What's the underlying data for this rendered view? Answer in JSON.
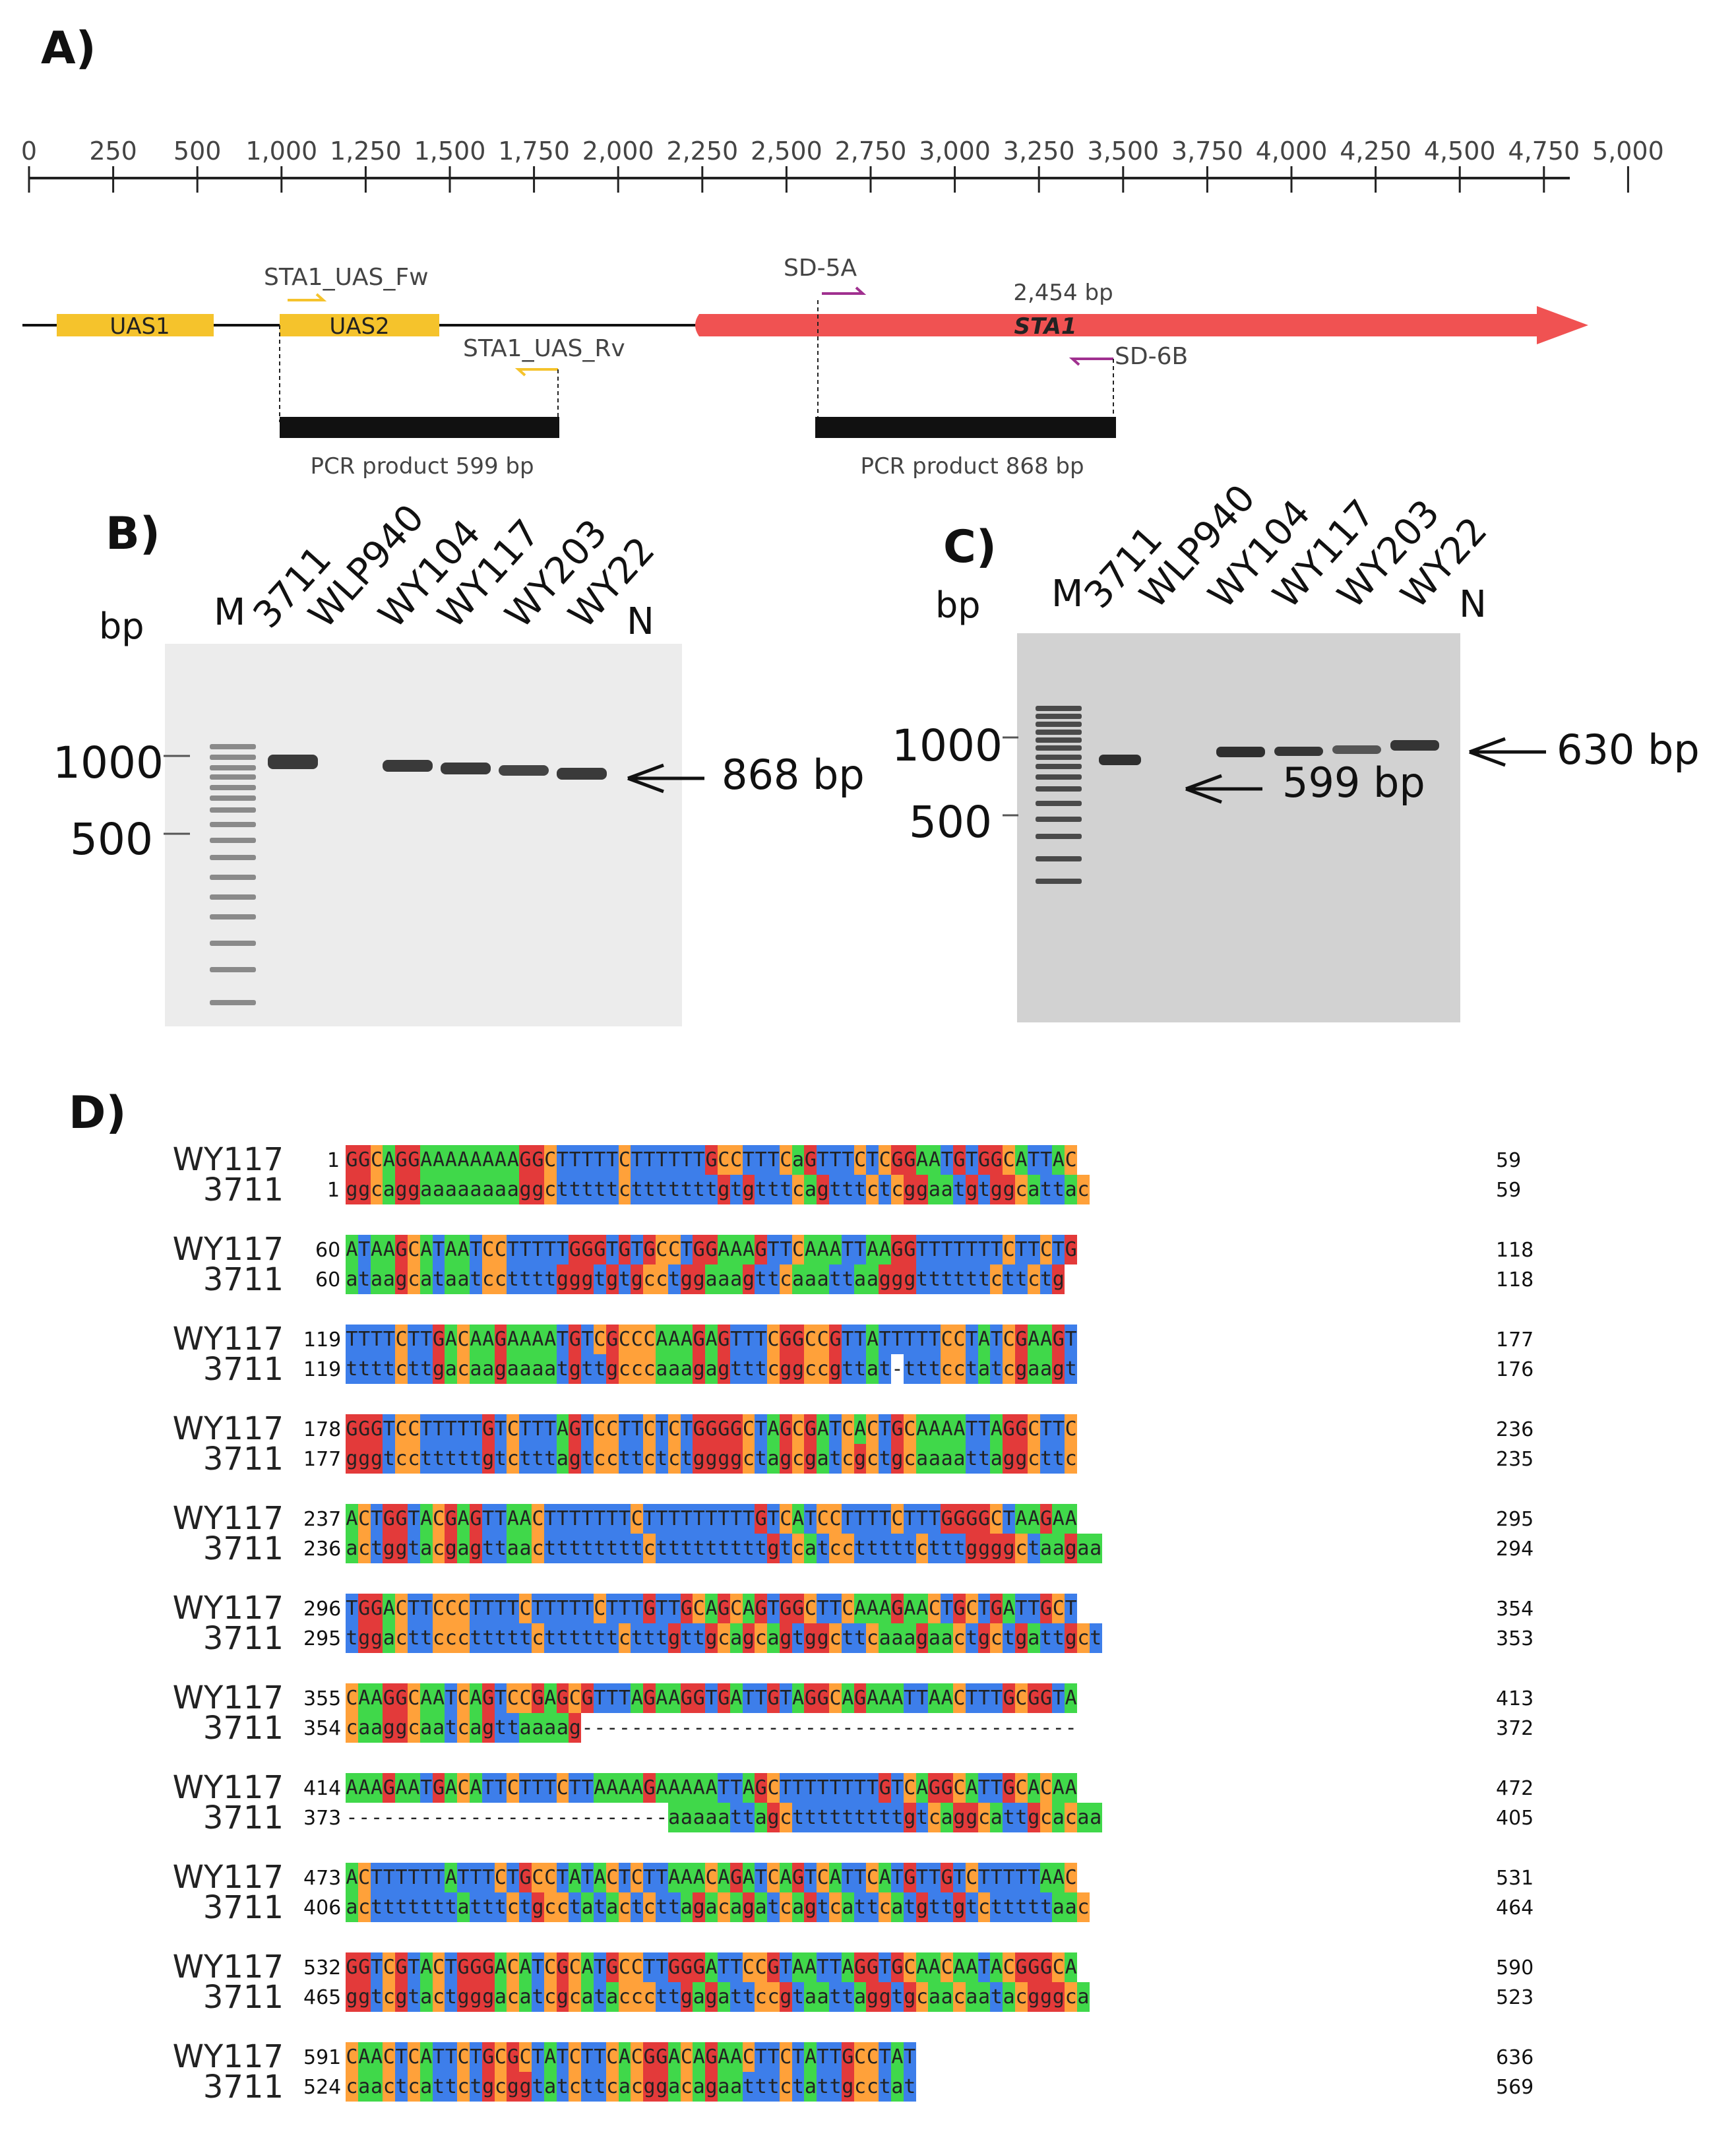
{
  "panels": {
    "a": "A)",
    "b": "B)",
    "c": "C)",
    "d": "D)"
  },
  "ruler_ticks": [
    "0",
    "250",
    "500",
    "1,000",
    "1,250",
    "1,500",
    "1,750",
    "2,000",
    "2,250",
    "2,500",
    "2,750",
    "3,000",
    "3,250",
    "3,500",
    "3,750",
    "4,000",
    "4,250",
    "4,500",
    "4,750",
    "5,000"
  ],
  "map": {
    "uas1": "UAS1",
    "uas2": "UAS2",
    "sta1": "STA1",
    "sta1_size": "2,454 bp",
    "primer_fw": "STA1_UAS_Fw",
    "primer_rv": "STA1_UAS_Rv",
    "primer_5a": "SD-5A",
    "primer_6b": "SD-6B",
    "pcr_left": "PCR product 599 bp",
    "pcr_right": "PCR product 868 bp",
    "colors": {
      "uas": "#f5c32c",
      "sta1": "#f05252",
      "primer_yellow": "#f5c32c",
      "primer_purple": "#a0308f"
    }
  },
  "gel_b": {
    "lanes": [
      "M",
      "3711",
      "WLP940",
      "WY104",
      "WY117",
      "WY203",
      "WY22",
      "N"
    ],
    "bp": "bp",
    "mark_high": "1000",
    "mark_low": "500",
    "arrow_label": "868 bp"
  },
  "gel_c": {
    "lanes": [
      "M",
      "3711",
      "WLP940",
      "WY104",
      "WY117",
      "WY203",
      "WY22",
      "N"
    ],
    "bp": "bp",
    "mark_high": "1000",
    "mark_low": "500",
    "arrow_label_1": "599 bp",
    "arrow_label_2": "630 bp"
  },
  "alignment": {
    "name_a": "WY117",
    "name_b": "3711",
    "rows": [
      {
        "a_start": "1",
        "a_end": "59",
        "b_start": "1",
        "b_end": "59",
        "a": "GGCAGGAAAAAAAAGGCTTTTTCTTTTTTGCCTTTCaGTTTCTCGGAATGTGGCATTAC",
        "b": "ggcaggaaaaaaaaggctttttctttttttgtgtttcagtttctcggaatgtggcattac"
      },
      {
        "a_start": "60",
        "a_end": "118",
        "b_start": "60",
        "b_end": "118",
        "a": "ATAAGCATAATCCTTTTTGGGTGTGCCTGGAAAGTTCAAATTAAGGTTTTTTTCTTCTG",
        "b": "ataagcataatccttttgggtgtgcctggaaagttcaaattaagggttttttcttctg"
      },
      {
        "a_start": "119",
        "a_end": "177",
        "b_start": "119",
        "b_end": "176",
        "a": "TTTTCTTGACAAGAAAATGTCGCCCAAAGAGTTTCGGCCGTTATTTTTCCTATCGAAGT",
        "b": "ttttcttgacaagaaaatgttgcccaaagagtttcggccgttat-tttcctatcgaagt"
      },
      {
        "a_start": "178",
        "a_end": "236",
        "b_start": "177",
        "b_end": "235",
        "a": "GGGTCCTTTTTGTCTTTAGTCCTTCTCTGGGGCTAGCGATCACTGCAAAATTAGGCTTC",
        "b": "gggtcctttttgtctttagtccttctctggggctagcgatcgctgcaaaattaggcttc"
      },
      {
        "a_start": "237",
        "a_end": "295",
        "b_start": "236",
        "b_end": "294",
        "a": "ACTGGTACGAGTTAACTTTTTTTCTTTTTTTTTGTCATCCTTTTCTTTGGGGCTAAGAA",
        "b": "actggtacgagttaacttttttttctttttttttgtcatcctttttctttggggctaagaa"
      },
      {
        "a_start": "296",
        "a_end": "354",
        "b_start": "295",
        "b_end": "353",
        "a": "TGGACTTCCCTTTTCTTTTTCTTTGTTGCAGCAGTGGCTTCAAAGAACTGCTGATTGCT",
        "b": "tggacttccctttttcttttttctttgttgcagcagtggcttcaaagaactgctgattgct"
      },
      {
        "a_start": "355",
        "a_end": "413",
        "b_start": "354",
        "b_end": "372",
        "a": "CAAGGCAATCAGTCCGAGCGTTTAGAAGGTGATTGTAGGCAGAAATTAACTTTGCGGTA",
        "b": "caaggcaatcagttaaaag----------------------------------------"
      },
      {
        "a_start": "414",
        "a_end": "472",
        "b_start": "373",
        "b_end": "405",
        "a": "AAAGAATGACATTCTTTCTTAAAAGAAAAATTAGCTTTTTTTTGTCAGGCATTGCACAA",
        "b": "--------------------------aaaaattagctttttttttgtcaggcattgcacaa"
      },
      {
        "a_start": "473",
        "a_end": "531",
        "b_start": "406",
        "b_end": "464",
        "a": "ACTTTTTTATTTCTGCCTATACTCTTAAACAGATCAGTCATTCATGTTGTCTTTTTAAC",
        "b": "actttttttatttctgcctatactcttagacagatcagtcattcatgttgtctttttaac"
      },
      {
        "a_start": "532",
        "a_end": "590",
        "b_start": "465",
        "b_end": "523",
        "a": "GGTCGTACTGGGACATCGCATGCCTTGGGATTCCGTAATTAGGTGCAACAATACGGGCA",
        "b": "ggtcgtactgggacatcgcatacccttgagattccgtaattaggtgcaacaatacgggca"
      },
      {
        "a_start": "591",
        "a_end": "636",
        "b_start": "524",
        "b_end": "569",
        "a": "CAACTCATTCTGCGCTATCTTCACGGACAGAACTTCTATTGCCTAT",
        "b": "caactcattctgcggtatcttcacggacagaatttctattgcctat"
      }
    ]
  }
}
